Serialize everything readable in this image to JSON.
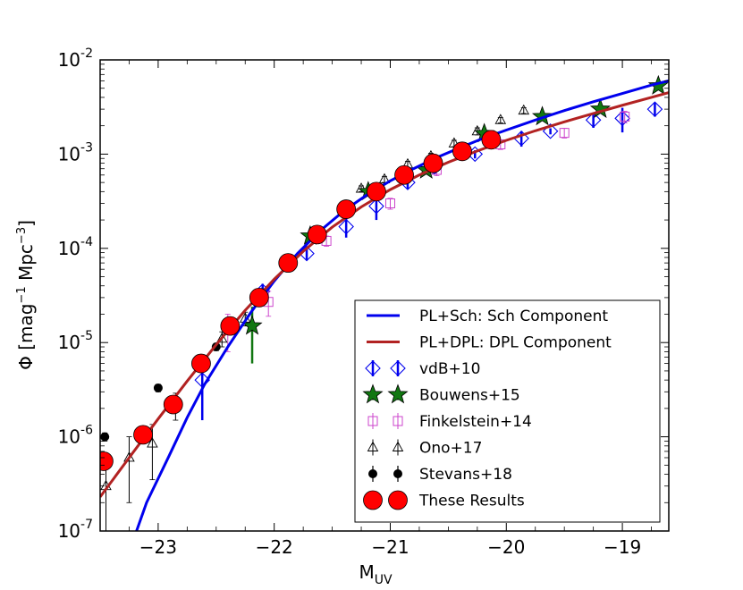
{
  "chart_data": {
    "type": "scatter",
    "title": "",
    "xlabel": {
      "main": "M",
      "sub": "UV"
    },
    "ylabel": {
      "pre": "Φ [mag",
      "sup1": "−1",
      "mid": " Mpc",
      "sup2": "−3",
      "post": "]"
    },
    "xlim": [
      -23.5,
      -18.6
    ],
    "ylim_log10": [
      -7,
      -2
    ],
    "x_ticks": [
      -23,
      -22,
      -21,
      -20,
      -19
    ],
    "x_tick_labels": [
      "−23",
      "−22",
      "−21",
      "−20",
      "−19"
    ],
    "y_ticks": [
      -7,
      -6,
      -5,
      -4,
      -3,
      -2
    ],
    "y_tick_base": "10",
    "y_tick_exps": [
      "-7",
      "-6",
      "-5",
      "-4",
      "-3",
      "-2"
    ],
    "grid": false,
    "legend_position": "lower-right",
    "lines": [
      {
        "name": "PL+Sch: Sch Component",
        "color": "#0000ee",
        "x": [
          -23.25,
          -23.1,
          -22.9,
          -22.75,
          -22.6,
          -22.4,
          -22.2,
          -22.0,
          -21.8,
          -21.6,
          -21.4,
          -21.2,
          -21.0,
          -20.8,
          -20.6,
          -20.4,
          -20.2,
          -20.0,
          -19.75,
          -19.5,
          -19.25,
          -19.0,
          -18.75,
          -18.6
        ],
        "y": [
          6e-08,
          2e-07,
          6.5e-07,
          1.6e-06,
          3.6e-06,
          9e-06,
          2.1e-05,
          4.5e-05,
          8.8e-05,
          0.000155,
          0.00025,
          0.00037,
          0.00052,
          0.0007,
          0.00092,
          0.00117,
          0.00147,
          0.0018,
          0.0023,
          0.0029,
          0.0036,
          0.0044,
          0.0054,
          0.006
        ]
      },
      {
        "name": "PL+DPL: DPL Component",
        "color": "#b22222",
        "x": [
          -23.5,
          -23.25,
          -23.0,
          -22.75,
          -22.5,
          -22.25,
          -22.0,
          -21.75,
          -21.5,
          -21.25,
          -21.0,
          -20.75,
          -20.5,
          -20.25,
          -20.0,
          -19.75,
          -19.5,
          -19.25,
          -19.0,
          -18.75,
          -18.6
        ],
        "y": [
          2.3e-07,
          6e-07,
          1.55e-06,
          3.9e-06,
          9.5e-06,
          2.2e-05,
          4.7e-05,
          9.3e-05,
          0.000168,
          0.000275,
          0.00042,
          0.0006,
          0.00082,
          0.00108,
          0.0014,
          0.00177,
          0.0022,
          0.0027,
          0.0033,
          0.004,
          0.0045
        ]
      }
    ],
    "series": [
      {
        "name": "vdB+10",
        "marker": "diamond",
        "color": "#0000ee",
        "points": [
          {
            "x": -22.62,
            "y": 4e-06,
            "lo": 1.5e-06,
            "hi": 6e-06
          },
          {
            "x": -22.1,
            "y": 3.5e-05,
            "lo": 2.8e-05,
            "hi": 4.2e-05
          },
          {
            "x": -21.72,
            "y": 8.8e-05,
            "lo": 7.5e-05,
            "hi": 0.0001
          },
          {
            "x": -21.38,
            "y": 0.00017,
            "lo": 0.00013,
            "hi": 0.00021
          },
          {
            "x": -21.12,
            "y": 0.00028,
            "lo": 0.0002,
            "hi": 0.00036
          },
          {
            "x": -20.85,
            "y": 0.0005,
            "lo": 0.00043,
            "hi": 0.00057
          },
          {
            "x": -20.62,
            "y": 0.00073,
            "lo": 0.00063,
            "hi": 0.00083
          },
          {
            "x": -20.27,
            "y": 0.001,
            "lo": 0.0009,
            "hi": 0.0011
          },
          {
            "x": -19.87,
            "y": 0.00147,
            "lo": 0.0012,
            "hi": 0.00175
          },
          {
            "x": -19.62,
            "y": 0.00175,
            "lo": 0.00162,
            "hi": 0.00188
          },
          {
            "x": -19.25,
            "y": 0.0023,
            "lo": 0.0019,
            "hi": 0.0027
          },
          {
            "x": -19.0,
            "y": 0.0024,
            "lo": 0.0017,
            "hi": 0.0031
          },
          {
            "x": -18.72,
            "y": 0.003,
            "lo": 0.0025,
            "hi": 0.0035
          }
        ]
      },
      {
        "name": "Bouwens+15",
        "marker": "star",
        "color": "#117711",
        "points": [
          {
            "x": -22.19,
            "y": 1.5e-05,
            "lo": 6e-06,
            "hi": 2.4e-05
          },
          {
            "x": -21.69,
            "y": 0.000135,
            "lo": 0.00012,
            "hi": 0.00015
          },
          {
            "x": -21.19,
            "y": 0.0004,
            "lo": 0.00036,
            "hi": 0.00044
          },
          {
            "x": -20.69,
            "y": 0.00068,
            "lo": 0.00062,
            "hi": 0.00074
          },
          {
            "x": -20.19,
            "y": 0.00165,
            "lo": 0.0015,
            "hi": 0.0018
          },
          {
            "x": -19.69,
            "y": 0.0025,
            "lo": 0.0023,
            "hi": 0.0027
          },
          {
            "x": -19.19,
            "y": 0.003,
            "lo": 0.0027,
            "hi": 0.0033
          },
          {
            "x": -18.69,
            "y": 0.0053,
            "lo": 0.0048,
            "hi": 0.0058
          }
        ]
      },
      {
        "name": "Finkelstein+14",
        "marker": "square",
        "color": "#cc44cc",
        "points": [
          {
            "x": -22.4,
            "y": 1.4e-05,
            "lo": 8e-06,
            "hi": 2e-05
          },
          {
            "x": -22.05,
            "y": 2.7e-05,
            "lo": 1.9e-05,
            "hi": 3.5e-05
          },
          {
            "x": -21.55,
            "y": 0.00012,
            "lo": 0.000105,
            "hi": 0.000135
          },
          {
            "x": -21.0,
            "y": 0.0003,
            "lo": 0.00026,
            "hi": 0.00034
          },
          {
            "x": -20.6,
            "y": 0.00068,
            "lo": 0.00059,
            "hi": 0.00077
          },
          {
            "x": -20.05,
            "y": 0.00127,
            "lo": 0.00112,
            "hi": 0.00142
          },
          {
            "x": -19.5,
            "y": 0.00168,
            "lo": 0.00148,
            "hi": 0.00188
          },
          {
            "x": -18.98,
            "y": 0.0025,
            "lo": 0.00215,
            "hi": 0.00285
          },
          {
            "x": -18.55,
            "y": 0.0035,
            "lo": 0.003,
            "hi": 0.004
          }
        ]
      },
      {
        "name": "Ono+17",
        "marker": "triangle",
        "color": "#000000",
        "points": [
          {
            "x": -23.45,
            "y": 3e-07,
            "lo": 9e-08,
            "hi": 5e-07
          },
          {
            "x": -23.25,
            "y": 6e-07,
            "lo": 2e-07,
            "hi": 1e-06
          },
          {
            "x": -23.05,
            "y": 8.5e-07,
            "lo": 3.5e-07,
            "hi": 1.35e-06
          },
          {
            "x": -22.85,
            "y": 2.2e-06,
            "lo": 1.5e-06,
            "hi": 2.9e-06
          },
          {
            "x": -22.45,
            "y": 1.1e-05,
            "lo": 9e-06,
            "hi": 1.3e-05
          },
          {
            "x": -22.25,
            "y": 1.8e-05,
            "lo": 1.5e-05,
            "hi": 2.1e-05
          },
          {
            "x": -21.25,
            "y": 0.00043,
            "lo": 0.0004,
            "hi": 0.00046
          },
          {
            "x": -21.05,
            "y": 0.00054,
            "lo": 0.0005,
            "hi": 0.00058
          },
          {
            "x": -20.85,
            "y": 0.00078,
            "lo": 0.00072,
            "hi": 0.00084
          },
          {
            "x": -20.65,
            "y": 0.00095,
            "lo": 0.00088,
            "hi": 0.00102
          },
          {
            "x": -20.45,
            "y": 0.0013,
            "lo": 0.0012,
            "hi": 0.0014
          },
          {
            "x": -20.25,
            "y": 0.00175,
            "lo": 0.0016,
            "hi": 0.0019
          },
          {
            "x": -20.05,
            "y": 0.0023,
            "lo": 0.00215,
            "hi": 0.00245
          },
          {
            "x": -19.85,
            "y": 0.0029,
            "lo": 0.0027,
            "hi": 0.0031
          }
        ]
      },
      {
        "name": "Stevans+18",
        "marker": "circle-small",
        "color": "#000000",
        "points": [
          {
            "x": -23.46,
            "y": 1e-06,
            "lo": 9e-07,
            "hi": 1.1e-06
          },
          {
            "x": -23.0,
            "y": 3.3e-06,
            "lo": 3e-06,
            "hi": 3.6e-06
          },
          {
            "x": -22.5,
            "y": 9e-06,
            "lo": 8.2e-06,
            "hi": 9.8e-06
          }
        ]
      },
      {
        "name": "These Results",
        "marker": "circle-large",
        "color": "#ff0000",
        "points": [
          {
            "x": -23.47,
            "y": 5.5e-07
          },
          {
            "x": -23.13,
            "y": 1.05e-06
          },
          {
            "x": -22.87,
            "y": 2.2e-06
          },
          {
            "x": -22.63,
            "y": 6e-06
          },
          {
            "x": -22.38,
            "y": 1.5e-05
          },
          {
            "x": -22.13,
            "y": 3e-05
          },
          {
            "x": -21.88,
            "y": 7e-05
          },
          {
            "x": -21.63,
            "y": 0.00014
          },
          {
            "x": -21.38,
            "y": 0.00026
          },
          {
            "x": -21.12,
            "y": 0.0004
          },
          {
            "x": -20.88,
            "y": 0.0006
          },
          {
            "x": -20.63,
            "y": 0.0008
          },
          {
            "x": -20.38,
            "y": 0.00107
          },
          {
            "x": -20.13,
            "y": 0.00142
          }
        ]
      }
    ]
  }
}
